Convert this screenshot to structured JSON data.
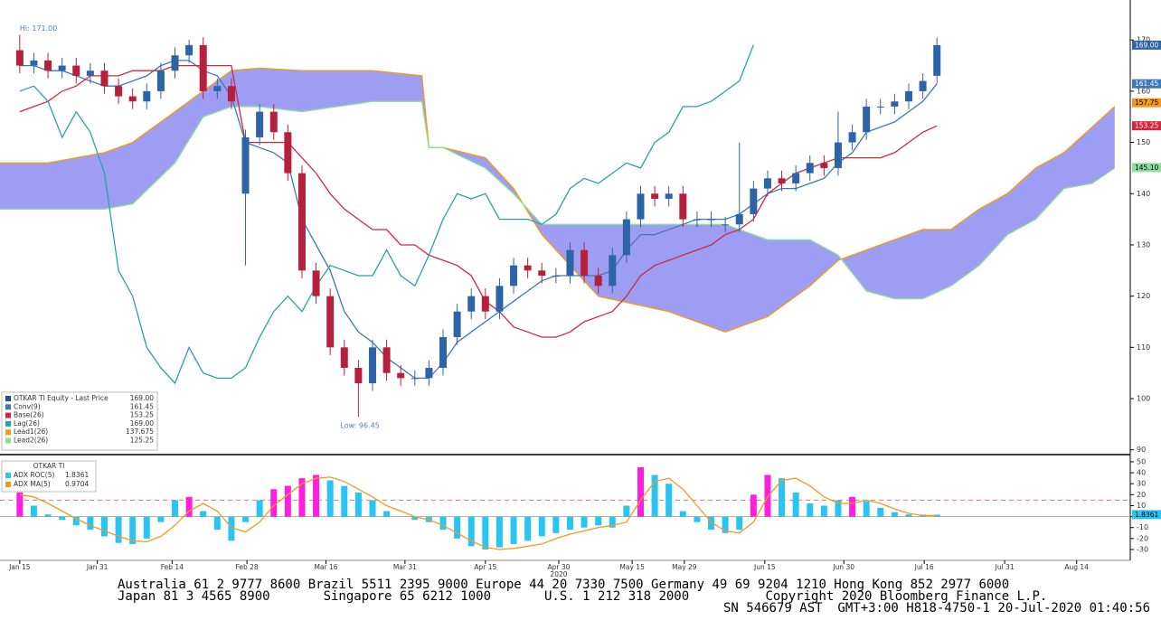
{
  "chart_data": [
    {
      "type": "ichimoku",
      "xlim": [
        -1.4,
        78.7
      ],
      "ylim": [
        89.6,
        177.8
      ],
      "yticks": [
        90,
        100,
        110,
        120,
        130,
        140,
        150,
        160,
        170
      ],
      "candles": {
        "name": "OTKAR TI Equity - Last Price",
        "legend_value": "169.00",
        "color": "#1f4e8c",
        "up_color": "#2d64a8",
        "down_color": "#b5203c",
        "axis_label": {
          "value": 169,
          "label": "169.00"
        },
        "open": [
          168,
          165,
          166,
          164,
          165,
          163,
          164,
          161,
          159,
          158,
          160,
          164,
          167,
          169,
          160,
          161,
          140,
          151,
          156,
          152,
          144,
          125,
          120,
          110,
          106,
          103,
          110,
          105,
          104,
          104,
          106,
          112,
          117,
          120,
          117,
          122,
          126,
          125,
          124,
          124,
          129,
          124,
          122,
          128,
          135,
          140,
          139,
          140,
          135,
          135,
          134,
          134,
          136,
          141,
          143,
          142,
          144,
          146,
          145,
          150,
          152,
          157,
          157,
          158,
          160,
          163
        ],
        "high": [
          171,
          167.5,
          167.5,
          166.5,
          166.5,
          165.5,
          165.5,
          162.5,
          160.5,
          161.5,
          165.5,
          168.5,
          170,
          170.5,
          162.5,
          162.5,
          152.5,
          157.5,
          157.5,
          153.5,
          145.5,
          126.5,
          121.5,
          111.5,
          107.5,
          111.5,
          111.5,
          106.5,
          105.5,
          107.5,
          113.5,
          118.5,
          121.5,
          121.5,
          123.5,
          127.5,
          127.5,
          126.5,
          125.5,
          130.5,
          130.5,
          125.5,
          129.5,
          136.5,
          141.5,
          141.5,
          141.5,
          141.5,
          136.5,
          136.5,
          135.5,
          150,
          142.5,
          144.5,
          144.5,
          145.5,
          147.5,
          147.5,
          156,
          153.5,
          158.5,
          158.5,
          159.5,
          161.5,
          163.5,
          170.5
        ],
        "low": [
          163.5,
          163.5,
          162.5,
          162.5,
          161.5,
          161.5,
          159.5,
          157.5,
          156.5,
          156.5,
          158.5,
          162.5,
          165.5,
          158.5,
          158.5,
          156.5,
          126,
          149.5,
          150.5,
          142.5,
          123.5,
          118.5,
          108.5,
          104.5,
          96.45,
          101.5,
          103.5,
          102.5,
          102.5,
          102.5,
          104.5,
          110.5,
          115.5,
          115.5,
          115.5,
          120.5,
          123.5,
          122.5,
          122.5,
          122.5,
          122.5,
          120.5,
          120.5,
          126.5,
          133.5,
          137.5,
          137.5,
          133.5,
          133.5,
          133.5,
          132.5,
          132.5,
          134.5,
          139.5,
          140.5,
          140.5,
          142.5,
          143.5,
          143.5,
          148.5,
          150.5,
          155.5,
          155.5,
          156.5,
          158.5,
          161.5
        ],
        "close": [
          165,
          166,
          164,
          165,
          163,
          164,
          161,
          159,
          158,
          160,
          164,
          167,
          169,
          160,
          161,
          158,
          151,
          156,
          152,
          144,
          125,
          120,
          110,
          106,
          103,
          110,
          105,
          104,
          104,
          106,
          112,
          117,
          120,
          117,
          122,
          126,
          125,
          124,
          124,
          129,
          124,
          122,
          128,
          135,
          140,
          139,
          140,
          135,
          135,
          135,
          134,
          136,
          141,
          143,
          142,
          144,
          146,
          145,
          150,
          152,
          157,
          157,
          158,
          160,
          162,
          169
        ]
      },
      "series": [
        {
          "name": "Conv(9)",
          "legend_value": "161.45",
          "color": "#3d78b8",
          "axis_label": {
            "value": 161.45,
            "label": "161.45"
          },
          "values": [
            165,
            165,
            164,
            164,
            163,
            162,
            161,
            161,
            162,
            163,
            165,
            166,
            166,
            164,
            163,
            159,
            150,
            149,
            148,
            146,
            135,
            130,
            125,
            117,
            113,
            111,
            108,
            106,
            104,
            104,
            107,
            111,
            113,
            115,
            117,
            119,
            121,
            123,
            124,
            124,
            124,
            124,
            125,
            129,
            132,
            132,
            133,
            134,
            135,
            135,
            135,
            136,
            138,
            140,
            141,
            141,
            142,
            143,
            146,
            148,
            152,
            153,
            154,
            156,
            158,
            161.45
          ]
        },
        {
          "name": "Base(26)",
          "legend_value": "153.25",
          "color": "#d0283e",
          "axis_label": {
            "value": 153.25,
            "label": "153.25"
          },
          "values": [
            156,
            157,
            158,
            160,
            161,
            163,
            163,
            163,
            164,
            164,
            164,
            165,
            165,
            165,
            165,
            165,
            150,
            150,
            150,
            150,
            147,
            144,
            140,
            137,
            135,
            133,
            133,
            130,
            130,
            128,
            127,
            126,
            124,
            119,
            117,
            114,
            113,
            112,
            112,
            113,
            115,
            116,
            117,
            120,
            124,
            126,
            127,
            128,
            129,
            130,
            132,
            133,
            135,
            140,
            142,
            144,
            145,
            146,
            147,
            147,
            147,
            147,
            148,
            150,
            152,
            153.25
          ]
        },
        {
          "name": "Lag(26)",
          "legend_value": "169.00",
          "color": "#2aa0a8",
          "values": [
            160,
            161,
            158,
            151,
            156,
            152,
            144,
            125,
            120,
            110,
            106,
            103,
            110,
            105,
            104,
            104,
            106,
            112,
            117,
            120,
            117,
            122,
            126,
            125,
            124,
            124,
            129,
            124,
            122,
            128,
            135,
            140,
            139,
            140,
            135,
            135,
            135,
            134,
            136,
            141,
            143,
            142,
            144,
            146,
            145,
            150,
            152,
            157,
            157,
            158,
            160,
            162,
            169,
            null,
            null,
            null,
            null,
            null,
            null,
            null,
            null,
            null,
            null,
            null,
            null,
            null
          ]
        }
      ],
      "cloud": {
        "fill": "#9d9df3",
        "x": [
          -1.4,
          2,
          6,
          8,
          11,
          13,
          15,
          17,
          20,
          25,
          28.5,
          29,
          30,
          33,
          35,
          37,
          41,
          46,
          50,
          53,
          56,
          58,
          60,
          62,
          64,
          66,
          68,
          70,
          72,
          74,
          76,
          77.6
        ],
        "series": [
          {
            "name": "Lead1(26)",
            "legend_value": "137.675",
            "color": "#f39a1e",
            "axis_label": {
              "value": 157.75,
              "label": "157.75"
            },
            "values": [
              146,
              146,
              148,
              150,
              156,
              160,
              164,
              164.5,
              164,
              164,
              163,
              149,
              149,
              147,
              141,
              132,
              120,
              117,
              113,
              116,
              122,
              127,
              129,
              131,
              133,
              133,
              137,
              140,
              145,
              148,
              153,
              157
            ]
          },
          {
            "name": "Lead2(26)",
            "legend_value": "125.25",
            "color": "#8fdc9c",
            "axis_label": {
              "value": 145.1,
              "label": "145.10"
            },
            "values": [
              137,
              137,
              137,
              138,
              146,
              155,
              157,
              157,
              156,
              158,
              158,
              149,
              149,
              145,
              140,
              134,
              134,
              134,
              134,
              131,
              131,
              128,
              121,
              119.5,
              119.5,
              122,
              126,
              132,
              135,
              141,
              142,
              145
            ]
          }
        ]
      },
      "annotations": [
        {
          "text": "Hi: 171.00",
          "value": 171,
          "index": 0
        },
        {
          "text": "Low: 96.45",
          "value": 96.45,
          "index": 24
        }
      ]
    },
    {
      "type": "bar",
      "xlim": [
        -1.4,
        78.7
      ],
      "ylim": [
        -39.9,
        54.9
      ],
      "yticks": [
        50,
        40,
        30,
        20,
        10,
        0,
        -10,
        -20,
        -30
      ],
      "legend_title": "OTKAR TI",
      "reference_line": 15,
      "reference_color": "#f07070",
      "xticks": [
        {
          "value": 0,
          "label": "Jan 15"
        },
        {
          "value": 5.5,
          "label": "Jan 31"
        },
        {
          "value": 10.8,
          "label": "Feb 14"
        },
        {
          "value": 16.1,
          "label": "Feb 28"
        },
        {
          "value": 21.7,
          "label": "Mar 16"
        },
        {
          "value": 27.3,
          "label": "Mar 31"
        },
        {
          "value": 33.0,
          "label": "Apr 15"
        },
        {
          "value": 38.2,
          "label": "Apr 30"
        },
        {
          "value": 43.4,
          "label": "May 15"
        },
        {
          "value": 47.1,
          "label": "May 29"
        },
        {
          "value": 52.8,
          "label": "Jun 15"
        },
        {
          "value": 58.4,
          "label": "Jun 30"
        },
        {
          "value": 64.1,
          "label": "Jul 16"
        },
        {
          "value": 69.8,
          "label": "Jul 31"
        },
        {
          "value": 74.9,
          "label": "Aug 14"
        }
      ],
      "year_label": {
        "value": 38.2,
        "label": "2020"
      },
      "series": [
        {
          "name": "ADX ROC(5)",
          "legend_value": "1.8361",
          "color": "#29c4f4",
          "highlight_color": "#ff1ee0",
          "axis_label": {
            "value": 1.8361,
            "label": "1.8361"
          },
          "values": [
            22,
            10,
            2,
            -3,
            -8,
            -12,
            -18,
            -24,
            -25,
            -20,
            -5,
            15,
            18,
            5,
            -12,
            -22,
            -5,
            15,
            25,
            28,
            35,
            38,
            33,
            28,
            22,
            15,
            5,
            0,
            -3,
            -5,
            -12,
            -20,
            -27,
            -30,
            -28,
            -25,
            -22,
            -18,
            -15,
            -12,
            -10,
            -8,
            -10,
            10,
            45,
            38,
            30,
            5,
            -5,
            -12,
            -15,
            -12,
            20,
            38,
            35,
            22,
            12,
            10,
            15,
            18,
            14,
            8,
            4,
            2,
            1.8,
            1.8361
          ]
        },
        {
          "name": "ADX MA(5)",
          "legend_value": "0.9704",
          "color": "#f39a1e",
          "values": [
            20,
            18,
            12,
            5,
            -2,
            -8,
            -13,
            -18,
            -22,
            -23,
            -18,
            -8,
            5,
            12,
            5,
            -10,
            -14,
            -5,
            10,
            20,
            30,
            35,
            36,
            32,
            25,
            18,
            10,
            5,
            0,
            -3,
            -8,
            -15,
            -22,
            -28,
            -30,
            -29,
            -27,
            -25,
            -20,
            -16,
            -13,
            -10,
            -8,
            -5,
            15,
            32,
            35,
            25,
            10,
            -5,
            -13,
            -15,
            -5,
            18,
            33,
            35,
            28,
            18,
            12,
            12,
            15,
            12,
            7,
            3,
            1,
            0.9704
          ]
        }
      ]
    }
  ],
  "footer": [
    "Australia 61 2 9777 8600 Brazil 5511 2395 9000 Europe 44 20 7330 7500 Germany 49 69 9204 1210 Hong Kong 852 2977 6000",
    "Japan 81 3 4565 8900       Singapore 65 6212 1000       U.S. 1 212 318 2000          Copyright 2020 Bloomberg Finance L.P.",
    "SN 546679 AST  GMT+3:00 H818-4750-1 20-Jul-2020 01:40:56"
  ]
}
